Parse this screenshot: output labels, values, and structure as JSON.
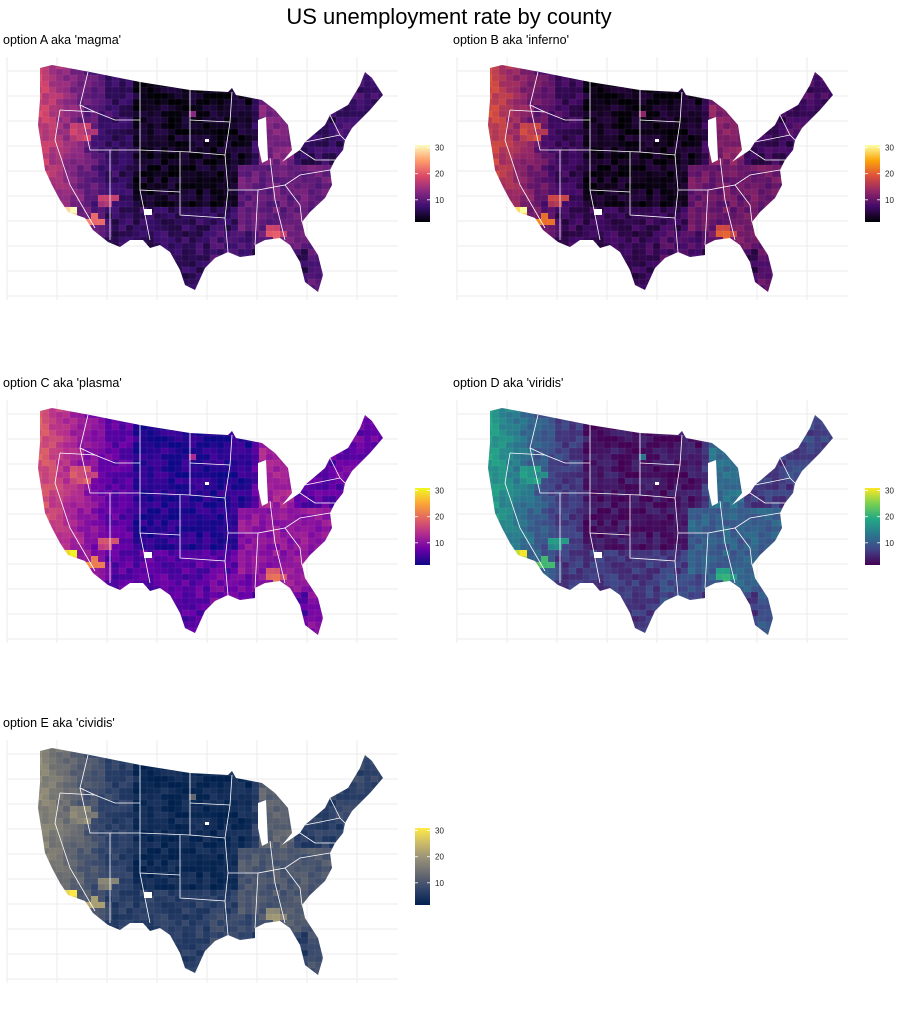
{
  "title": "US unemployment rate by county",
  "chart_data": {
    "type": "heatmap",
    "title": "US unemployment rate by county",
    "xlabel": "",
    "ylabel": "",
    "grid": true,
    "legend_placement": "right",
    "colorbar": {
      "limits": [
        1.5,
        31
      ],
      "ticks": [
        10,
        20,
        30
      ],
      "tick_labels": [
        "10",
        "20",
        "30"
      ]
    },
    "panels": [
      {
        "title": "option A aka 'magma'",
        "palette": "magma",
        "colors": [
          "#000004",
          "#3b0f70",
          "#8c2981",
          "#de4968",
          "#fe9f6d",
          "#fcfdbf"
        ]
      },
      {
        "title": "option B aka 'inferno'",
        "palette": "inferno",
        "colors": [
          "#000004",
          "#420a68",
          "#932667",
          "#dd513a",
          "#fca50a",
          "#fcffa4"
        ]
      },
      {
        "title": "option C aka 'plasma'",
        "palette": "plasma",
        "colors": [
          "#0d0887",
          "#6a00a8",
          "#b12a90",
          "#e16462",
          "#fca636",
          "#f0f921"
        ]
      },
      {
        "title": "option D aka 'viridis'",
        "palette": "viridis",
        "colors": [
          "#440154",
          "#414487",
          "#2a788e",
          "#22a884",
          "#7ad151",
          "#fde725"
        ]
      },
      {
        "title": "option E aka 'cividis'",
        "palette": "cividis",
        "colors": [
          "#00204d",
          "#31446b",
          "#666970",
          "#958f78",
          "#cbba69",
          "#ffea46"
        ]
      }
    ]
  }
}
